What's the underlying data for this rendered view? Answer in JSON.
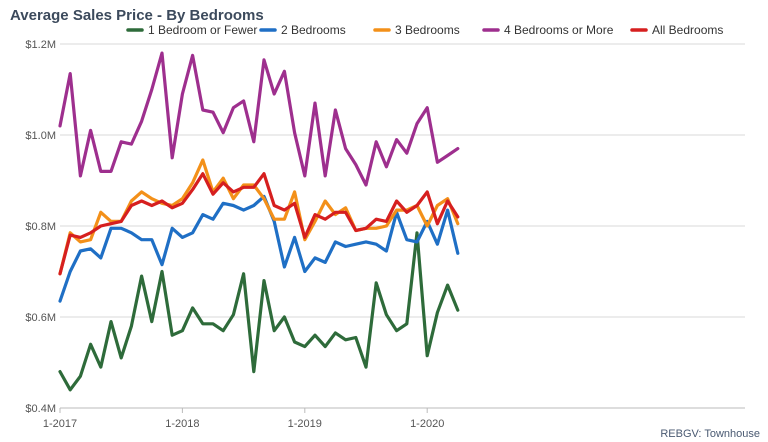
{
  "chart_data": {
    "type": "line",
    "title": "Average Sales Price - By Bedrooms",
    "source_note": "REBGV: Townhouse",
    "x_ticks": [
      "1-2017",
      "1-2018",
      "1-2019",
      "1-2020"
    ],
    "x_tick_index": [
      0,
      12,
      24,
      36
    ],
    "y_ticks": [
      {
        "value": 0.4,
        "label": "$0.4M"
      },
      {
        "value": 0.6,
        "label": "$0.6M"
      },
      {
        "value": 0.8,
        "label": "$0.8M"
      },
      {
        "value": 1.0,
        "label": "$1.0M"
      },
      {
        "value": 1.2,
        "label": "$1.2M"
      }
    ],
    "ylim": [
      0.4,
      1.2
    ],
    "grid": true,
    "legend_position": "top",
    "series": [
      {
        "name": "1 Bedroom or Fewer",
        "color": "#2e6b3a",
        "values": [
          0.48,
          0.44,
          0.47,
          0.54,
          0.49,
          0.59,
          0.51,
          0.58,
          0.69,
          0.59,
          0.7,
          0.56,
          0.57,
          0.62,
          0.585,
          0.585,
          0.57,
          0.605,
          0.695,
          0.48,
          0.68,
          0.57,
          0.6,
          0.545,
          0.535,
          0.56,
          0.535,
          0.565,
          0.55,
          0.555,
          0.49,
          0.675,
          0.605,
          0.57,
          0.585,
          0.785,
          0.515,
          0.61,
          0.67,
          0.615
        ]
      },
      {
        "name": "2 Bedrooms",
        "color": "#1f6fc5",
        "values": [
          0.635,
          0.7,
          0.745,
          0.75,
          0.73,
          0.795,
          0.795,
          0.785,
          0.77,
          0.77,
          0.715,
          0.795,
          0.775,
          0.785,
          0.825,
          0.815,
          0.85,
          0.845,
          0.835,
          0.845,
          0.865,
          0.81,
          0.71,
          0.775,
          0.7,
          0.73,
          0.72,
          0.765,
          0.755,
          0.76,
          0.765,
          0.76,
          0.745,
          0.83,
          0.77,
          0.765,
          0.81,
          0.76,
          0.835,
          0.74
        ]
      },
      {
        "name": "3 Bedrooms",
        "color": "#f39019",
        "values": [
          0.695,
          0.785,
          0.765,
          0.77,
          0.83,
          0.81,
          0.81,
          0.855,
          0.875,
          0.86,
          0.85,
          0.845,
          0.86,
          0.895,
          0.945,
          0.875,
          0.905,
          0.86,
          0.89,
          0.89,
          0.86,
          0.815,
          0.815,
          0.875,
          0.77,
          0.81,
          0.855,
          0.825,
          0.84,
          0.79,
          0.795,
          0.795,
          0.8,
          0.835,
          0.835,
          0.845,
          0.8,
          0.845,
          0.86,
          0.805
        ]
      },
      {
        "name": "4 Bedrooms or More",
        "color": "#9e2f8e",
        "values": [
          1.02,
          1.135,
          0.91,
          1.01,
          0.92,
          0.92,
          0.985,
          0.98,
          1.03,
          1.1,
          1.18,
          0.95,
          1.09,
          1.175,
          1.055,
          1.05,
          1.005,
          1.06,
          1.075,
          0.985,
          1.165,
          1.09,
          1.14,
          1.005,
          0.91,
          1.07,
          0.91,
          1.055,
          0.97,
          0.935,
          0.89,
          0.985,
          0.93,
          0.99,
          0.96,
          1.025,
          1.06,
          0.94,
          0.955,
          0.97
        ]
      },
      {
        "name": "All Bedrooms",
        "color": "#d61f1f",
        "values": [
          0.695,
          0.78,
          0.775,
          0.785,
          0.8,
          0.805,
          0.81,
          0.845,
          0.855,
          0.845,
          0.855,
          0.84,
          0.85,
          0.88,
          0.915,
          0.87,
          0.895,
          0.875,
          0.885,
          0.885,
          0.915,
          0.845,
          0.835,
          0.85,
          0.775,
          0.825,
          0.815,
          0.83,
          0.83,
          0.79,
          0.795,
          0.815,
          0.81,
          0.855,
          0.83,
          0.845,
          0.875,
          0.805,
          0.855,
          0.82
        ]
      }
    ]
  }
}
